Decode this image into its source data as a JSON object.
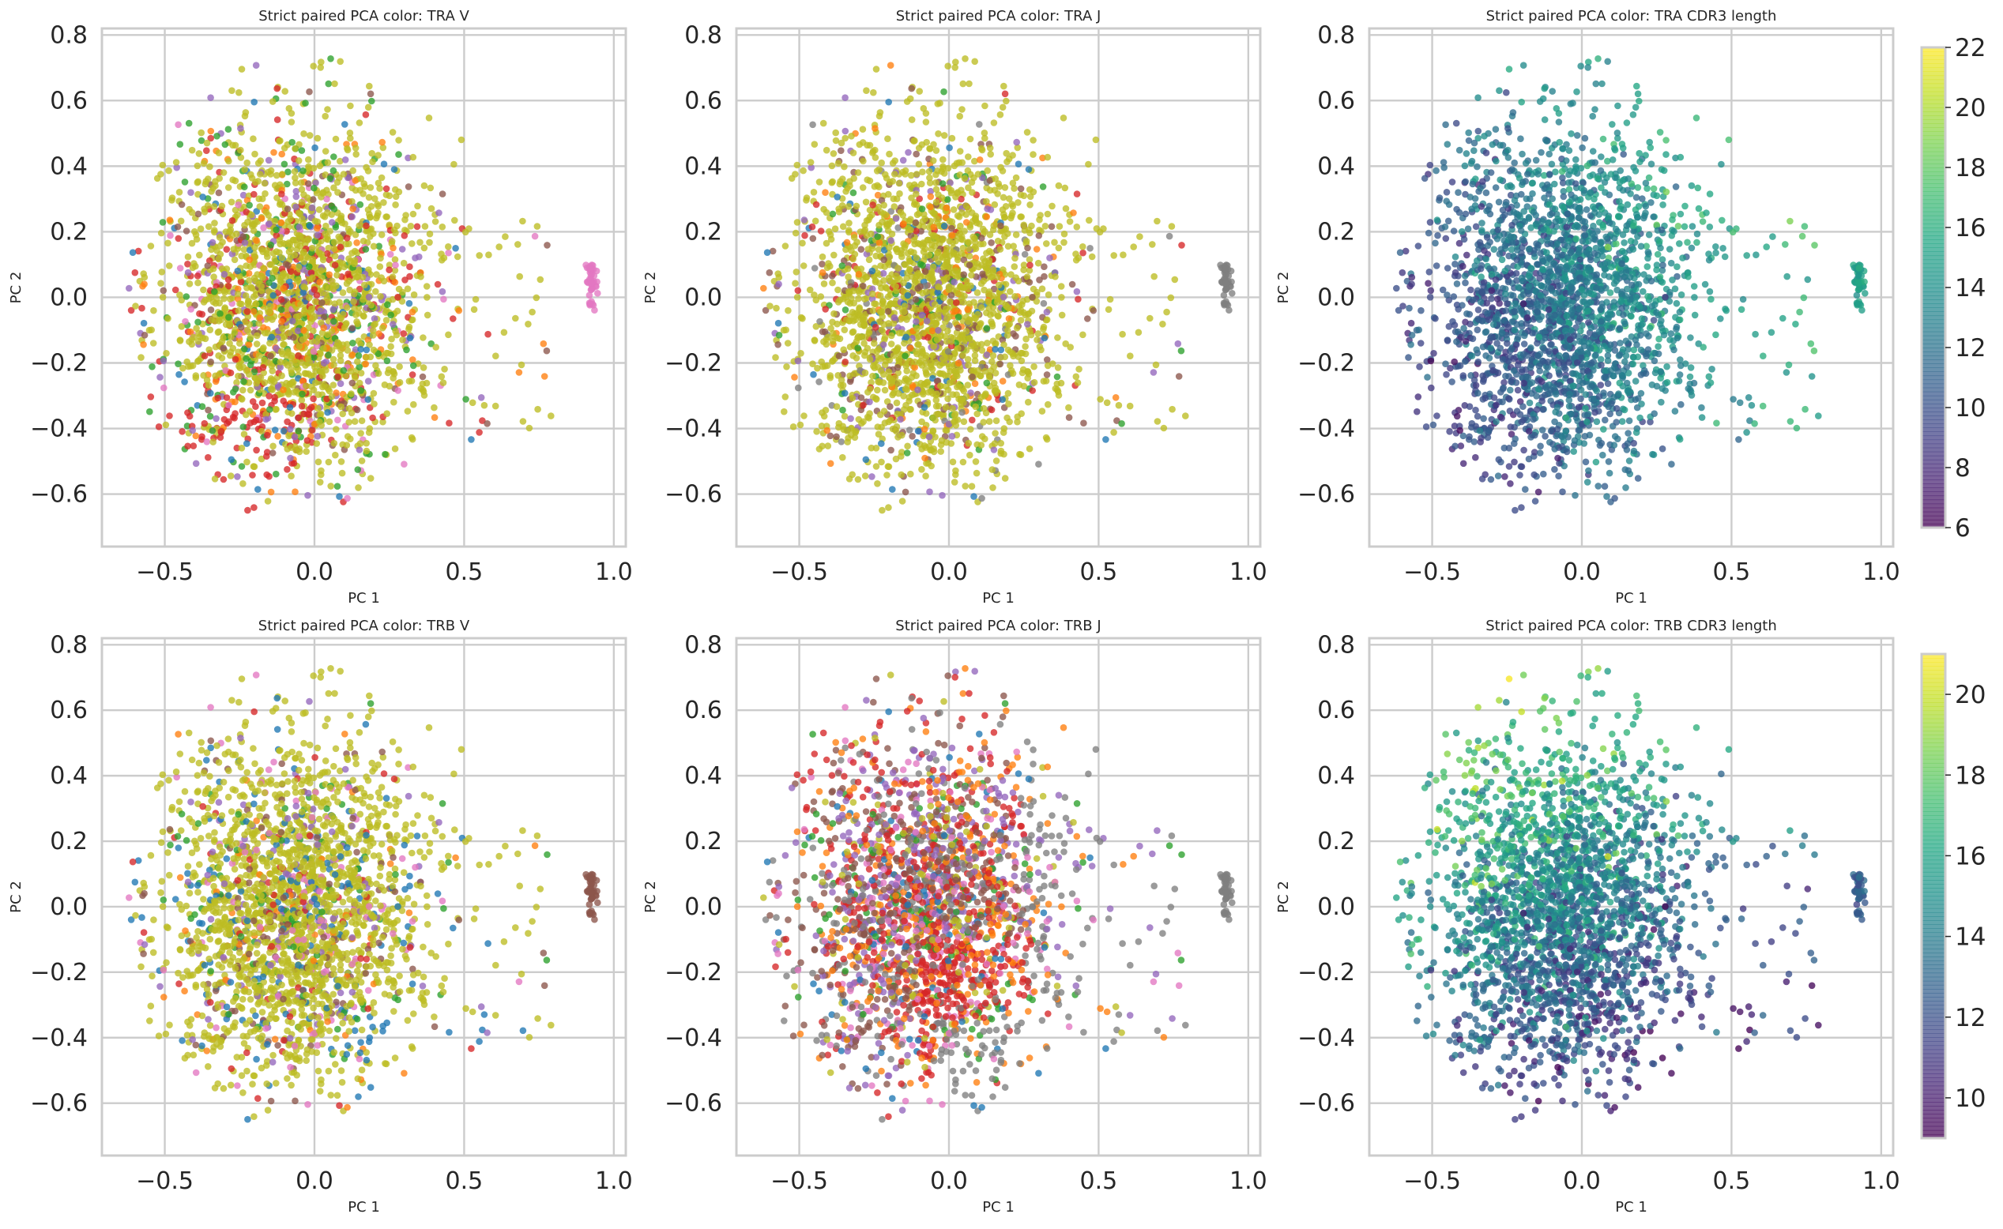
{
  "chart_data": [
    {
      "type": "scatter",
      "title": "Strict paired PCA color: TRA V",
      "xlabel": "PC 1",
      "ylabel": "PC 2",
      "xlim": [
        -0.71,
        1.04
      ],
      "ylim": [
        -0.76,
        0.82
      ],
      "xticks": [
        "−0.5",
        "0.0",
        "0.5",
        "1.0"
      ],
      "yticks": [
        "−0.6",
        "−0.4",
        "−0.2",
        "0.0",
        "0.2",
        "0.4",
        "0.6",
        "0.8"
      ],
      "grid": true,
      "color_mode": "categorical",
      "series": [
        {
          "color": "#bcbd22",
          "share": 0.62
        },
        {
          "color": "#2ca02c",
          "share": 0.07
        },
        {
          "color": "#d62728",
          "share": 0.07
        },
        {
          "color": "#ff7f0e",
          "share": 0.06
        },
        {
          "color": "#9467bd",
          "share": 0.06
        },
        {
          "color": "#8c564b",
          "share": 0.05
        },
        {
          "color": "#e377c2",
          "share": 0.04
        },
        {
          "color": "#1f77b4",
          "share": 0.03
        }
      ],
      "outlier_cluster": {
        "x": 0.93,
        "y_range": [
          -0.04,
          0.1
        ],
        "color": "#e377c2"
      }
    },
    {
      "type": "scatter",
      "title": "Strict paired PCA color: TRA J",
      "xlabel": "PC 1",
      "ylabel": "PC 2",
      "xlim": [
        -0.71,
        1.04
      ],
      "ylim": [
        -0.76,
        0.82
      ],
      "xticks": [
        "−0.5",
        "0.0",
        "0.5",
        "1.0"
      ],
      "yticks": [
        "−0.6",
        "−0.4",
        "−0.2",
        "0.0",
        "0.2",
        "0.4",
        "0.6",
        "0.8"
      ],
      "grid": true,
      "color_mode": "categorical",
      "series": [
        {
          "color": "#bcbd22",
          "share": 0.72
        },
        {
          "color": "#8c564b",
          "share": 0.07
        },
        {
          "color": "#9467bd",
          "share": 0.05
        },
        {
          "color": "#ff7f0e",
          "share": 0.04
        },
        {
          "color": "#2ca02c",
          "share": 0.04
        },
        {
          "color": "#d62728",
          "share": 0.03
        },
        {
          "color": "#7f7f7f",
          "share": 0.03
        },
        {
          "color": "#1f77b4",
          "share": 0.02
        }
      ],
      "outlier_cluster": {
        "x": 0.93,
        "y_range": [
          -0.04,
          0.1
        ],
        "color": "#7f7f7f"
      }
    },
    {
      "type": "scatter",
      "title": "Strict paired PCA color: TRA CDR3 length",
      "xlabel": "PC 1",
      "ylabel": "PC 2",
      "xlim": [
        -0.71,
        1.04
      ],
      "ylim": [
        -0.76,
        0.82
      ],
      "xticks": [
        "−0.5",
        "0.0",
        "0.5",
        "1.0"
      ],
      "yticks": [
        "−0.6",
        "−0.4",
        "−0.2",
        "0.0",
        "0.2",
        "0.4",
        "0.6",
        "0.8"
      ],
      "grid": true,
      "color_mode": "continuous",
      "colormap": "viridis",
      "colorbar": {
        "min": 6,
        "max": 22,
        "ticks": [
          6,
          8,
          10,
          12,
          14,
          16,
          18,
          20,
          22
        ]
      },
      "trend": {
        "base": 12.5,
        "per_pc1": 5.0,
        "per_pc2": 2.5
      },
      "outlier_cluster": {
        "x": 0.93,
        "y_range": [
          -0.04,
          0.1
        ],
        "value": 15
      }
    },
    {
      "type": "scatter",
      "title": "Strict paired PCA color: TRB V",
      "xlabel": "PC 1",
      "ylabel": "PC 2",
      "xlim": [
        -0.71,
        1.04
      ],
      "ylim": [
        -0.76,
        0.82
      ],
      "xticks": [
        "−0.5",
        "0.0",
        "0.5",
        "1.0"
      ],
      "yticks": [
        "−0.6",
        "−0.4",
        "−0.2",
        "0.0",
        "0.2",
        "0.4",
        "0.6",
        "0.8"
      ],
      "grid": true,
      "color_mode": "categorical",
      "series": [
        {
          "color": "#bcbd22",
          "share": 0.7
        },
        {
          "color": "#1f77b4",
          "share": 0.06
        },
        {
          "color": "#8c564b",
          "share": 0.05
        },
        {
          "color": "#e377c2",
          "share": 0.05
        },
        {
          "color": "#9467bd",
          "share": 0.05
        },
        {
          "color": "#2ca02c",
          "share": 0.04
        },
        {
          "color": "#ff7f0e",
          "share": 0.03
        },
        {
          "color": "#d62728",
          "share": 0.02
        }
      ],
      "outlier_cluster": {
        "x": 0.93,
        "y_range": [
          -0.04,
          0.1
        ],
        "color": "#8c564b"
      }
    },
    {
      "type": "scatter",
      "title": "Strict paired PCA color: TRB J",
      "xlabel": "PC 1",
      "ylabel": "PC 2",
      "xlim": [
        -0.71,
        1.04
      ],
      "ylim": [
        -0.76,
        0.82
      ],
      "xticks": [
        "−0.5",
        "0.0",
        "0.5",
        "1.0"
      ],
      "yticks": [
        "−0.6",
        "−0.4",
        "−0.2",
        "0.0",
        "0.2",
        "0.4",
        "0.6",
        "0.8"
      ],
      "grid": true,
      "color_mode": "categorical",
      "series": [
        {
          "color": "#8c564b",
          "share": 0.2
        },
        {
          "color": "#d62728",
          "share": 0.19
        },
        {
          "color": "#9467bd",
          "share": 0.15
        },
        {
          "color": "#ff7f0e",
          "share": 0.12
        },
        {
          "color": "#7f7f7f",
          "share": 0.1
        },
        {
          "color": "#e377c2",
          "share": 0.08
        },
        {
          "color": "#bcbd22",
          "share": 0.07
        },
        {
          "color": "#2ca02c",
          "share": 0.05
        },
        {
          "color": "#1f77b4",
          "share": 0.04
        }
      ],
      "outlier_cluster": {
        "x": 0.93,
        "y_range": [
          -0.04,
          0.1
        ],
        "color": "#7f7f7f"
      }
    },
    {
      "type": "scatter",
      "title": "Strict paired PCA color: TRB CDR3 length",
      "xlabel": "PC 1",
      "ylabel": "PC 2",
      "xlim": [
        -0.71,
        1.04
      ],
      "ylim": [
        -0.76,
        0.82
      ],
      "xticks": [
        "−0.5",
        "0.0",
        "0.5",
        "1.0"
      ],
      "yticks": [
        "−0.6",
        "−0.4",
        "−0.2",
        "0.0",
        "0.2",
        "0.4",
        "0.6",
        "0.8"
      ],
      "grid": true,
      "color_mode": "continuous",
      "colormap": "viridis",
      "colorbar": {
        "min": 9,
        "max": 21,
        "ticks": [
          10,
          12,
          14,
          16,
          18,
          20
        ]
      },
      "trend": {
        "base": 14.0,
        "per_pc1": -2.5,
        "per_pc2": 5.0
      },
      "outlier_cluster": {
        "x": 0.93,
        "y_range": [
          -0.04,
          0.1
        ],
        "value": 12.5
      }
    }
  ]
}
